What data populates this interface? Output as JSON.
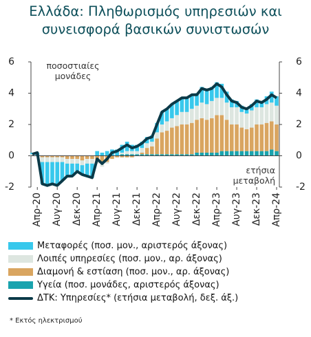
{
  "chart_data": {
    "type": "bar",
    "stacked": true,
    "title": "Ελλάδα: Πληθωρισμός υπηρεσιών και συνεισφορά βασικών συνιστωσών",
    "y_label": "ποσοστιαίες μονάδες",
    "y2_label": "ετήσια μεταβολή",
    "footnote": "* Εκτός ηλεκτρισμού",
    "categories": [
      null,
      "Απρ-20",
      null,
      null,
      null,
      "Αυγ-20",
      null,
      null,
      null,
      "Δεκ-20",
      null,
      null,
      null,
      "Απρ-21",
      null,
      null,
      null,
      "Αυγ-21",
      null,
      null,
      null,
      "Δεκ-21",
      null,
      null,
      null,
      "Απρ-22",
      null,
      null,
      null,
      "Αυγ-22",
      null,
      null,
      null,
      "Δεκ-22",
      null,
      null,
      null,
      "Απρ-23",
      null,
      null,
      null,
      "Αυγ-23",
      null,
      null,
      null,
      "Δεκ-23",
      null,
      null,
      null,
      "Απρ-24"
    ],
    "ylim": [
      -2,
      6
    ],
    "yticks": [
      -2,
      0,
      2,
      4,
      6
    ],
    "y2lim": [
      -2,
      6
    ],
    "y2ticks": [
      -2,
      0,
      2,
      4,
      6
    ],
    "series": [
      {
        "name": "Μεταφορές (ποσ. μον., αριστερός άξονας)",
        "color": "#38c8ec",
        "values": [
          0.1,
          0.2,
          -1.4,
          -1.5,
          -1.4,
          -1.5,
          -1.2,
          -0.8,
          -0.8,
          -0.5,
          -0.6,
          -0.8,
          -0.9,
          0.3,
          0.2,
          0.3,
          0.4,
          0.4,
          0.5,
          0.6,
          0.4,
          0.4,
          0.4,
          0.4,
          0.4,
          0.6,
          0.8,
          0.8,
          0.9,
          0.9,
          0.9,
          0.9,
          0.9,
          0.8,
          1.0,
          1.0,
          0.9,
          1.0,
          0.9,
          0.7,
          0.5,
          0.4,
          0.4,
          0.4,
          0.4,
          0.5,
          0.4,
          0.5,
          0.7,
          0.6
        ]
      },
      {
        "name": "Λοιπές υπηρεσίες (ποσ. μον., αρ. άξονας)",
        "color": "#dde6e0",
        "values": [
          0.1,
          0.0,
          -0.3,
          -0.3,
          -0.3,
          -0.3,
          -0.3,
          -0.3,
          -0.3,
          -0.3,
          -0.3,
          -0.3,
          -0.3,
          -0.2,
          -0.2,
          -0.1,
          0.0,
          0.0,
          0.1,
          0.2,
          0.2,
          0.2,
          0.3,
          0.3,
          0.3,
          0.4,
          0.5,
          0.6,
          0.6,
          0.7,
          0.8,
          0.8,
          0.9,
          0.9,
          1.0,
          1.0,
          1.1,
          1.1,
          1.1,
          1.1,
          1.1,
          1.1,
          1.0,
          1.0,
          1.1,
          1.1,
          1.1,
          1.2,
          1.2,
          1.2
        ]
      },
      {
        "name": "Διαμονή & εστίαση (ποσ. μον., αρ. άξονας)",
        "color": "#d9a560",
        "values": [
          0,
          0,
          -0.1,
          -0.1,
          -0.1,
          -0.1,
          -0.1,
          -0.2,
          -0.2,
          -0.2,
          -0.3,
          -0.2,
          -0.2,
          -0.3,
          -0.5,
          -0.4,
          -0.2,
          -0.1,
          -0.1,
          -0.1,
          -0.1,
          0.0,
          0.1,
          0.4,
          0.5,
          1.0,
          1.4,
          1.5,
          1.7,
          1.8,
          1.9,
          1.9,
          2.0,
          2.1,
          2.2,
          2.1,
          2.2,
          2.4,
          2.3,
          2.0,
          1.7,
          1.7,
          1.5,
          1.4,
          1.5,
          1.7,
          1.7,
          1.8,
          1.8,
          1.7
        ]
      },
      {
        "name": "Υγεία (ποσ. μονάδες, αριστερός άξονας)",
        "color": "#1aa3ae",
        "values": [
          0,
          0,
          0,
          0,
          0,
          0,
          0,
          0,
          0,
          0,
          0,
          0,
          0,
          0,
          0,
          0,
          0,
          0,
          0.1,
          0.1,
          0.1,
          0.1,
          0.1,
          0.1,
          0.1,
          0.1,
          0.1,
          0.1,
          0.1,
          0.1,
          0.1,
          0.1,
          0.1,
          0.2,
          0.2,
          0.2,
          0.2,
          0.2,
          0.3,
          0.3,
          0.3,
          0.3,
          0.3,
          0.3,
          0.3,
          0.3,
          0.3,
          0.3,
          0.4,
          0.3
        ]
      },
      {
        "name": "ΔΤΚ: Υπηρεσίες* (ετήσια μεταβολή, δεξ. άξ.)",
        "color": "#0b3a48",
        "type": "line",
        "axis": "y2",
        "values": [
          0.1,
          0.2,
          -1.8,
          -1.9,
          -1.8,
          -1.9,
          -1.6,
          -1.3,
          -1.3,
          -1.0,
          -1.2,
          -1.3,
          -1.4,
          -0.2,
          -0.5,
          -0.2,
          0.2,
          0.3,
          0.5,
          0.7,
          0.5,
          0.6,
          0.8,
          1.1,
          1.2,
          2.0,
          2.8,
          3.0,
          3.3,
          3.5,
          3.7,
          3.7,
          3.9,
          3.9,
          4.3,
          4.2,
          4.3,
          4.6,
          4.4,
          3.9,
          3.5,
          3.4,
          3.1,
          3.0,
          3.2,
          3.5,
          3.4,
          3.6,
          3.9,
          3.7
        ]
      }
    ]
  }
}
